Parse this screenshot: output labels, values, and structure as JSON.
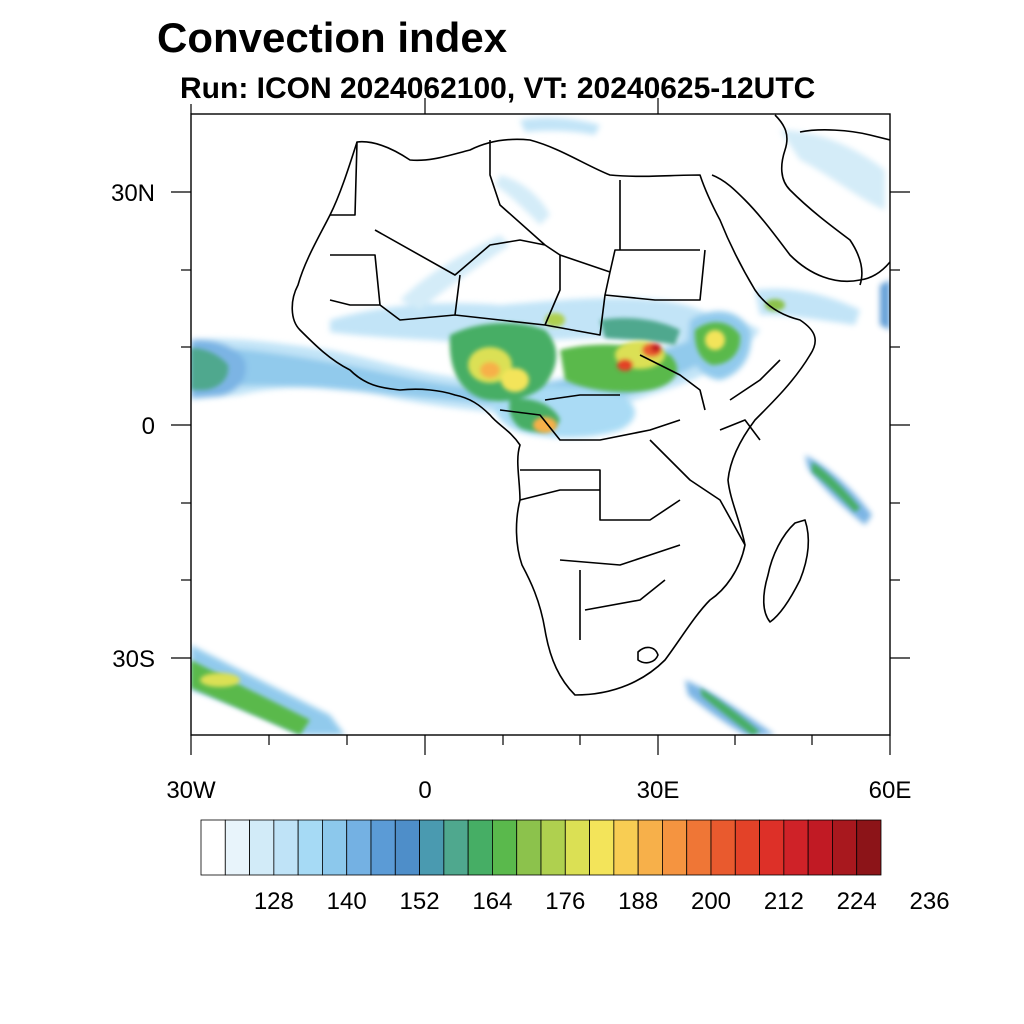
{
  "title": "Convection index",
  "subtitle": "Run: ICON 2024062100,  VT: 20240625-12UTC",
  "map": {
    "x_ticks": [
      "30W",
      "0",
      "30E",
      "60E"
    ],
    "y_ticks": [
      "30N",
      "0",
      "30S"
    ],
    "region": "Africa",
    "projection": "lat-lon"
  },
  "colorbar": {
    "levels": [
      "128",
      "140",
      "152",
      "164",
      "176",
      "188",
      "200",
      "212",
      "224",
      "236"
    ],
    "colors": [
      "#ffffff",
      "#e8f4fb",
      "#d2ebf8",
      "#bfe3f7",
      "#a6daf5",
      "#8cc8ec",
      "#74b1e3",
      "#5b9bd6",
      "#4e8ec9",
      "#4a9ab0",
      "#4fa88e",
      "#46ae65",
      "#5ab94c",
      "#8cc24c",
      "#afd04f",
      "#dbe054",
      "#f3e45a",
      "#f8cd53",
      "#f7b04a",
      "#f59440",
      "#ef7636",
      "#e95a2e",
      "#e34228",
      "#dd3028",
      "#cf2228",
      "#c11a24",
      "#a8181e",
      "#8c1418"
    ]
  }
}
